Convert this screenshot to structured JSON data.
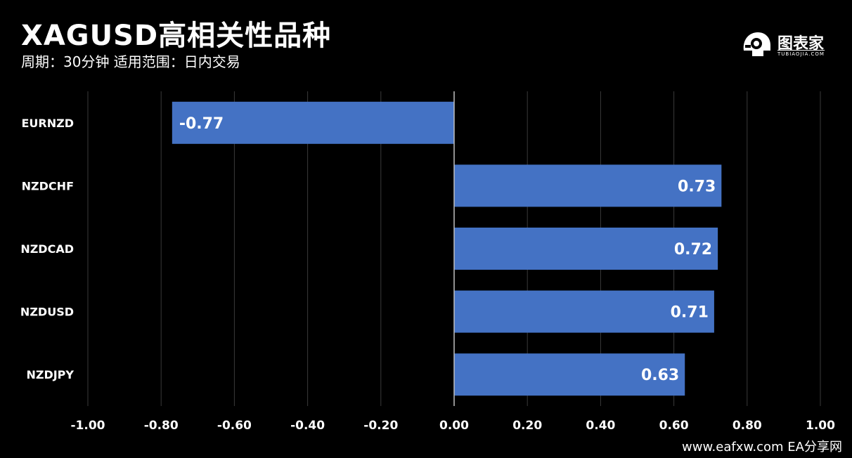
{
  "header": {
    "title": "XAGUSD高相关性品种",
    "subtitle": "周期：30分钟  适用范围：日内交易"
  },
  "logo": {
    "name": "图表家",
    "sub": "TUBIAOJIA.COM"
  },
  "footer": {
    "text": "www.eafxw.com   EA分享网"
  },
  "colors": {
    "background": "#000000",
    "bar": "#4472c4",
    "grid": "#3a3a3a",
    "text": "#ffffff"
  },
  "chart_data": {
    "type": "bar",
    "orientation": "horizontal",
    "categories": [
      "EURNZD",
      "NZDCHF",
      "NZDCAD",
      "NZDUSD",
      "NZDJPY"
    ],
    "values": [
      -0.77,
      0.73,
      0.72,
      0.71,
      0.63
    ],
    "data_labels": [
      "-0.77",
      "0.73",
      "0.72",
      "0.71",
      "0.63"
    ],
    "xlim": [
      -1.0,
      1.0
    ],
    "x_ticks": [
      "-1.00",
      "-0.80",
      "-0.60",
      "-0.40",
      "-0.20",
      "0.00",
      "0.20",
      "0.40",
      "0.60",
      "0.80",
      "1.00"
    ],
    "grid": true,
    "legend": "none"
  }
}
